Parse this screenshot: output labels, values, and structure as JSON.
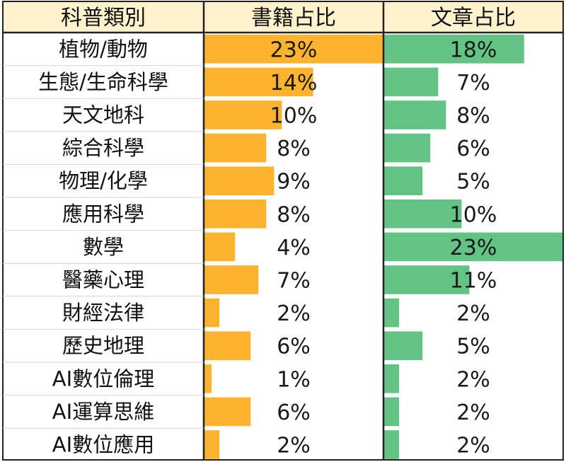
{
  "chart_data": {
    "type": "table",
    "headers": {
      "category": "科普類別",
      "books": "書籍占比",
      "articles": "文章占比"
    },
    "categories": [
      "植物/動物",
      "生態/生命科學",
      "天文地科",
      "綜合科學",
      "物理/化學",
      "應用科學",
      "數學",
      "醫藥心理",
      "財經法律",
      "歷史地理",
      "AI數位倫理",
      "AI運算思維",
      "AI數位應用"
    ],
    "series": [
      {
        "key": "books",
        "values": [
          23,
          14,
          10,
          8,
          9,
          8,
          4,
          7,
          2,
          6,
          1,
          6,
          2
        ],
        "labels": [
          "23%",
          "14%",
          "10%",
          "8%",
          "9%",
          "8%",
          "4%",
          "7%",
          "2%",
          "6%",
          "1%",
          "6%",
          "2%"
        ],
        "color": "#FDB32E"
      },
      {
        "key": "articles",
        "values": [
          18,
          7,
          8,
          6,
          5,
          10,
          23,
          11,
          2,
          5,
          2,
          2,
          2
        ],
        "labels": [
          "18%",
          "7%",
          "8%",
          "6%",
          "5%",
          "10%",
          "23%",
          "11%",
          "2%",
          "5%",
          "2%",
          "2%",
          "2%"
        ],
        "color": "#63C384"
      }
    ],
    "bar_max": 23,
    "header_bg": "#FFF2CC"
  }
}
